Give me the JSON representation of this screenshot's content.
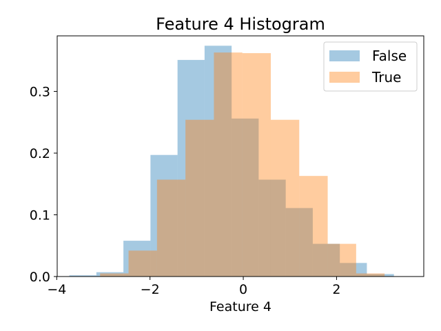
{
  "chart_data": {
    "type": "bar",
    "title": "Feature 4 Histogram",
    "xlabel": "Feature 4",
    "ylabel": "",
    "xlim": [
      -3.99,
      3.87
    ],
    "ylim": [
      0,
      0.39
    ],
    "xticks": [
      -4,
      -2,
      0,
      2
    ],
    "yticks": [
      0.0,
      0.1,
      0.2,
      0.3
    ],
    "xtick_labels": [
      "−4",
      "−2",
      "0",
      "2"
    ],
    "ytick_labels": [
      "0.0",
      "0.1",
      "0.2",
      "0.3"
    ],
    "grid": false,
    "legend": "top-right",
    "series": [
      {
        "name": "False",
        "color": "#1f77b4",
        "alpha": 0.4,
        "bins": [
          {
            "x0": -3.73,
            "x1": -3.15,
            "y": 0.002
          },
          {
            "x0": -3.15,
            "x1": -2.57,
            "y": 0.007
          },
          {
            "x0": -2.57,
            "x1": -1.99,
            "y": 0.058
          },
          {
            "x0": -1.99,
            "x1": -1.41,
            "y": 0.197
          },
          {
            "x0": -1.41,
            "x1": -0.83,
            "y": 0.351
          },
          {
            "x0": -0.83,
            "x1": -0.25,
            "y": 0.374
          },
          {
            "x0": -0.25,
            "x1": 0.33,
            "y": 0.256
          },
          {
            "x0": 0.33,
            "x1": 0.91,
            "y": 0.157
          },
          {
            "x0": 0.91,
            "x1": 1.49,
            "y": 0.111
          },
          {
            "x0": 1.49,
            "x1": 2.07,
            "y": 0.053
          },
          {
            "x0": 2.07,
            "x1": 2.65,
            "y": 0.022
          },
          {
            "x0": 2.65,
            "x1": 3.23,
            "y": 0.004
          }
        ]
      },
      {
        "name": "True",
        "color": "#ff7f0e",
        "alpha": 0.4,
        "bins": [
          {
            "x0": -3.07,
            "x1": -2.46,
            "y": 0.005
          },
          {
            "x0": -2.46,
            "x1": -1.85,
            "y": 0.042
          },
          {
            "x0": -1.85,
            "x1": -1.24,
            "y": 0.157
          },
          {
            "x0": -1.24,
            "x1": -0.63,
            "y": 0.254
          },
          {
            "x0": -0.63,
            "x1": -0.02,
            "y": 0.363
          },
          {
            "x0": -0.02,
            "x1": 0.59,
            "y": 0.362
          },
          {
            "x0": 0.59,
            "x1": 1.2,
            "y": 0.254
          },
          {
            "x0": 1.2,
            "x1": 1.81,
            "y": 0.163
          },
          {
            "x0": 1.81,
            "x1": 2.42,
            "y": 0.053
          },
          {
            "x0": 2.42,
            "x1": 3.03,
            "y": 0.005
          }
        ]
      }
    ]
  }
}
